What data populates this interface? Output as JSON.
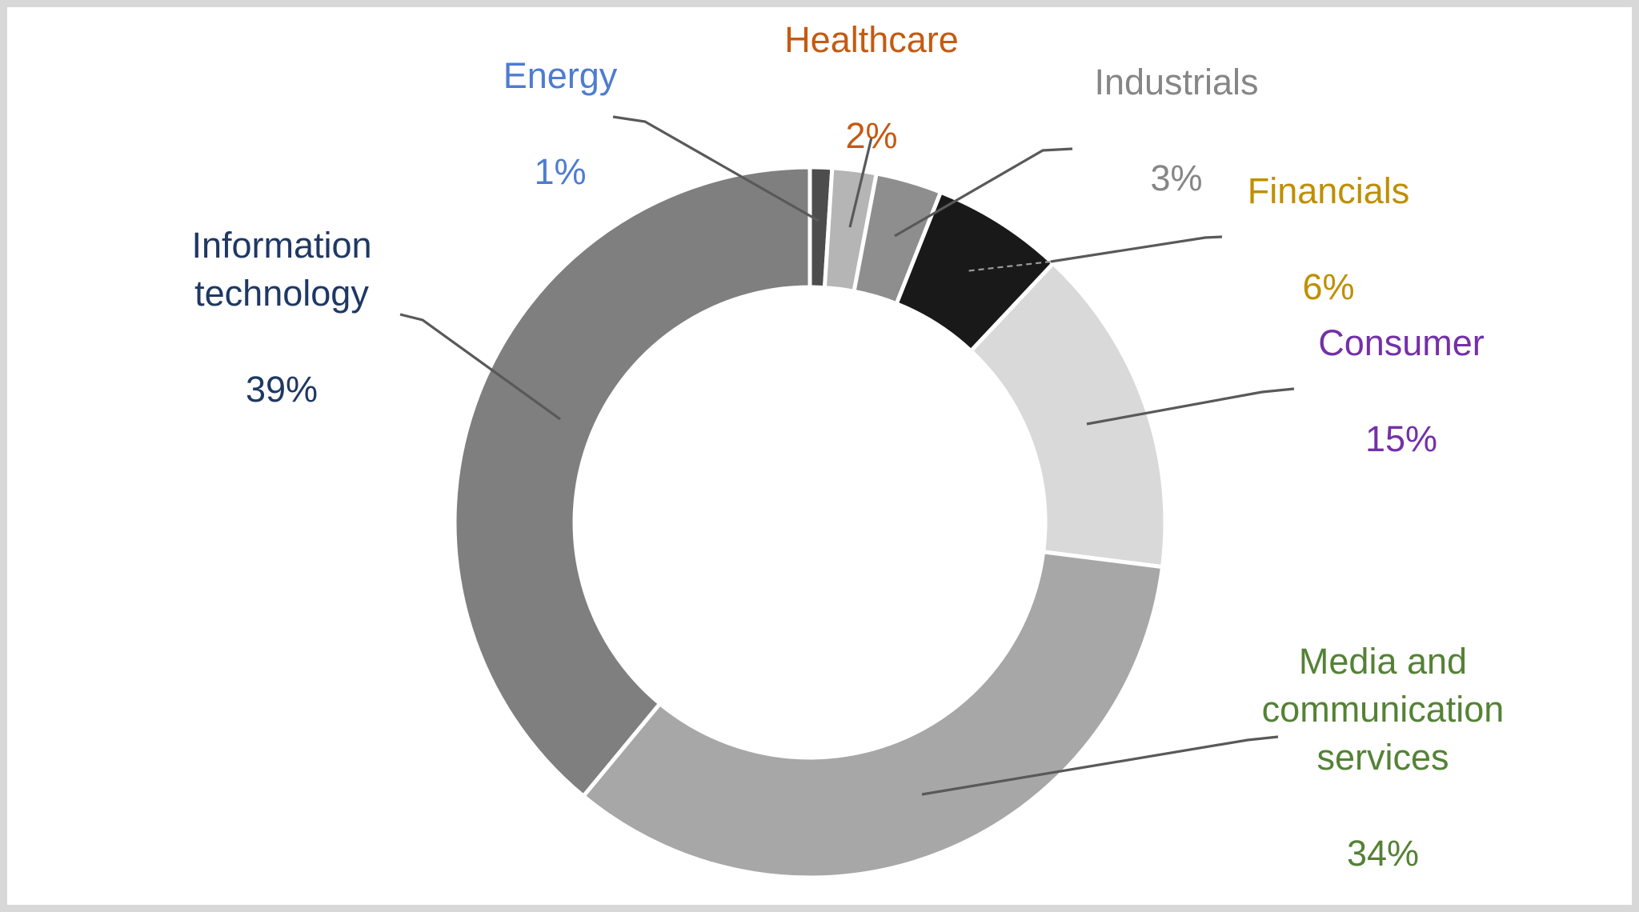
{
  "page": {
    "title": "",
    "background_color": "#FFFFFF",
    "border_color": "#D8D8D8"
  },
  "chart_data": {
    "type": "pie",
    "variant": "donut",
    "title": "",
    "units": "%",
    "start_angle_deg": 0,
    "direction": "clockwise",
    "inner_radius_ratio": 0.66,
    "legend": "none",
    "labels_position": "outside-with-leader-lines",
    "gap_color": "#FFFFFF",
    "leader_line_color": "#595959",
    "categories": [
      "Energy",
      "Healthcare",
      "Industrials",
      "Financials",
      "Consumer",
      "Media and communication services",
      "Information technology"
    ],
    "values": [
      1,
      2,
      3,
      6,
      15,
      34,
      39
    ],
    "sectors": [
      {
        "label": "Energy",
        "label_display": "Energy",
        "value": 1,
        "pct_label": "1%",
        "slice_color": "#4D4D4D",
        "label_color": "#4E7CD0"
      },
      {
        "label": "Healthcare",
        "label_display": "Healthcare",
        "value": 2,
        "pct_label": "2%",
        "slice_color": "#B5B5B5",
        "label_color": "#C55A11"
      },
      {
        "label": "Industrials",
        "label_display": "Industrials",
        "value": 3,
        "pct_label": "3%",
        "slice_color": "#8E8E8E",
        "label_color": "#868686"
      },
      {
        "label": "Financials",
        "label_display": "Financials",
        "value": 6,
        "pct_label": "6%",
        "slice_color": "#191919",
        "label_color": "#BF8F00"
      },
      {
        "label": "Consumer",
        "label_display": "Consumer",
        "value": 15,
        "pct_label": "15%",
        "slice_color": "#D9D9D9",
        "label_color": "#7430A8"
      },
      {
        "label": "Media and communication services",
        "label_display": "Media and\ncommunication\nservices",
        "value": 34,
        "pct_label": "34%",
        "slice_color": "#A7A7A7",
        "label_color": "#548235"
      },
      {
        "label": "Information technology",
        "label_display": "Information\ntechnology",
        "value": 39,
        "pct_label": "39%",
        "slice_color": "#7F7F7F",
        "label_color": "#1F3864"
      }
    ]
  }
}
